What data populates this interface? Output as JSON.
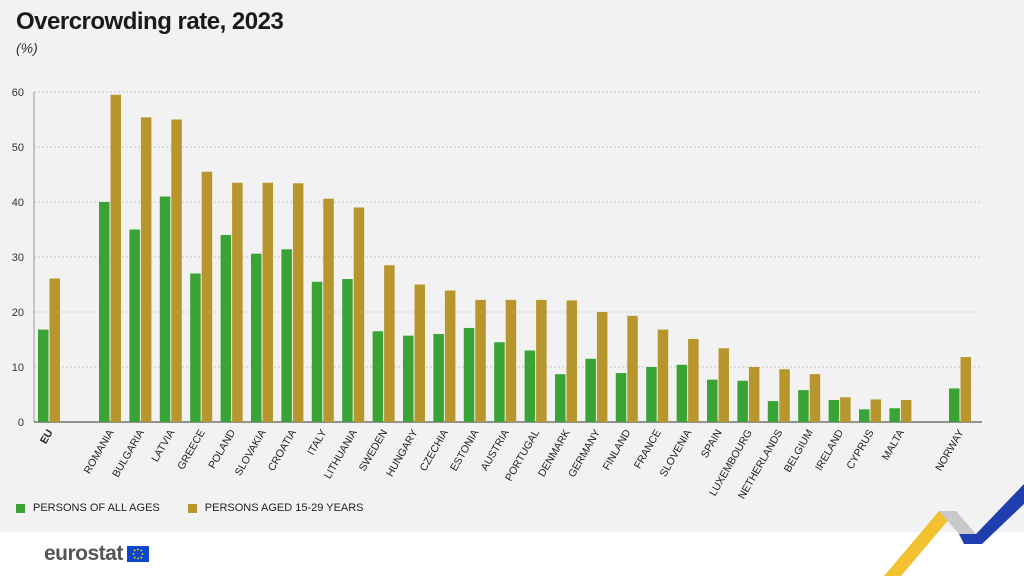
{
  "title": "Overcrowding rate, 2023",
  "subtitle": "(%)",
  "logo": {
    "text": "eurostat"
  },
  "colors": {
    "all_ages": "#3aa335",
    "youth": "#b8962e",
    "grid": "#c8c8c8",
    "background": "#f2f2f2"
  },
  "chart_data": {
    "type": "bar",
    "title": "Overcrowding rate, 2023",
    "subtitle": "(%)",
    "ylim": [
      0,
      60
    ],
    "yticks": [
      0,
      10,
      20,
      30,
      40,
      50,
      60
    ],
    "grid": true,
    "legend_position": "bottom-left",
    "categories": [
      "EU",
      "ROMANIA",
      "BULGARIA",
      "LATVIA",
      "GREECE",
      "POLAND",
      "SLOVAKIA",
      "CROATIA",
      "ITALY",
      "LITHUANIA",
      "SWEDEN",
      "HUNGARY",
      "CZECHIA",
      "ESTONIA",
      "AUSTRIA",
      "PORTUGAL",
      "DENMARK",
      "GERMANY",
      "FINLAND",
      "FRANCE",
      "SLOVENIA",
      "SPAIN",
      "LUXEMBOURG",
      "NETHERLANDS",
      "BELGIUM",
      "IRELAND",
      "CYPRUS",
      "MALTA",
      "NORWAY"
    ],
    "series": [
      {
        "name": "PERSONS OF ALL AGES",
        "color": "#3aa335",
        "values": [
          16.8,
          40.0,
          35.0,
          41.0,
          27.0,
          34.0,
          30.6,
          31.4,
          25.5,
          26.0,
          16.5,
          15.7,
          16.0,
          17.1,
          14.5,
          13.0,
          8.7,
          11.5,
          8.9,
          10.0,
          10.4,
          7.7,
          7.5,
          3.8,
          5.8,
          4.0,
          2.3,
          2.5,
          6.1
        ]
      },
      {
        "name": "PERSONS AGED 15-29 YEARS",
        "color": "#b8962e",
        "values": [
          26.1,
          59.5,
          55.4,
          55.0,
          45.5,
          43.5,
          43.5,
          43.4,
          40.6,
          39.0,
          28.5,
          25.0,
          23.9,
          22.2,
          22.2,
          22.2,
          22.1,
          20.0,
          19.3,
          16.8,
          15.1,
          13.4,
          10.0,
          9.6,
          8.7,
          4.5,
          4.1,
          4.0,
          11.8
        ]
      }
    ]
  }
}
